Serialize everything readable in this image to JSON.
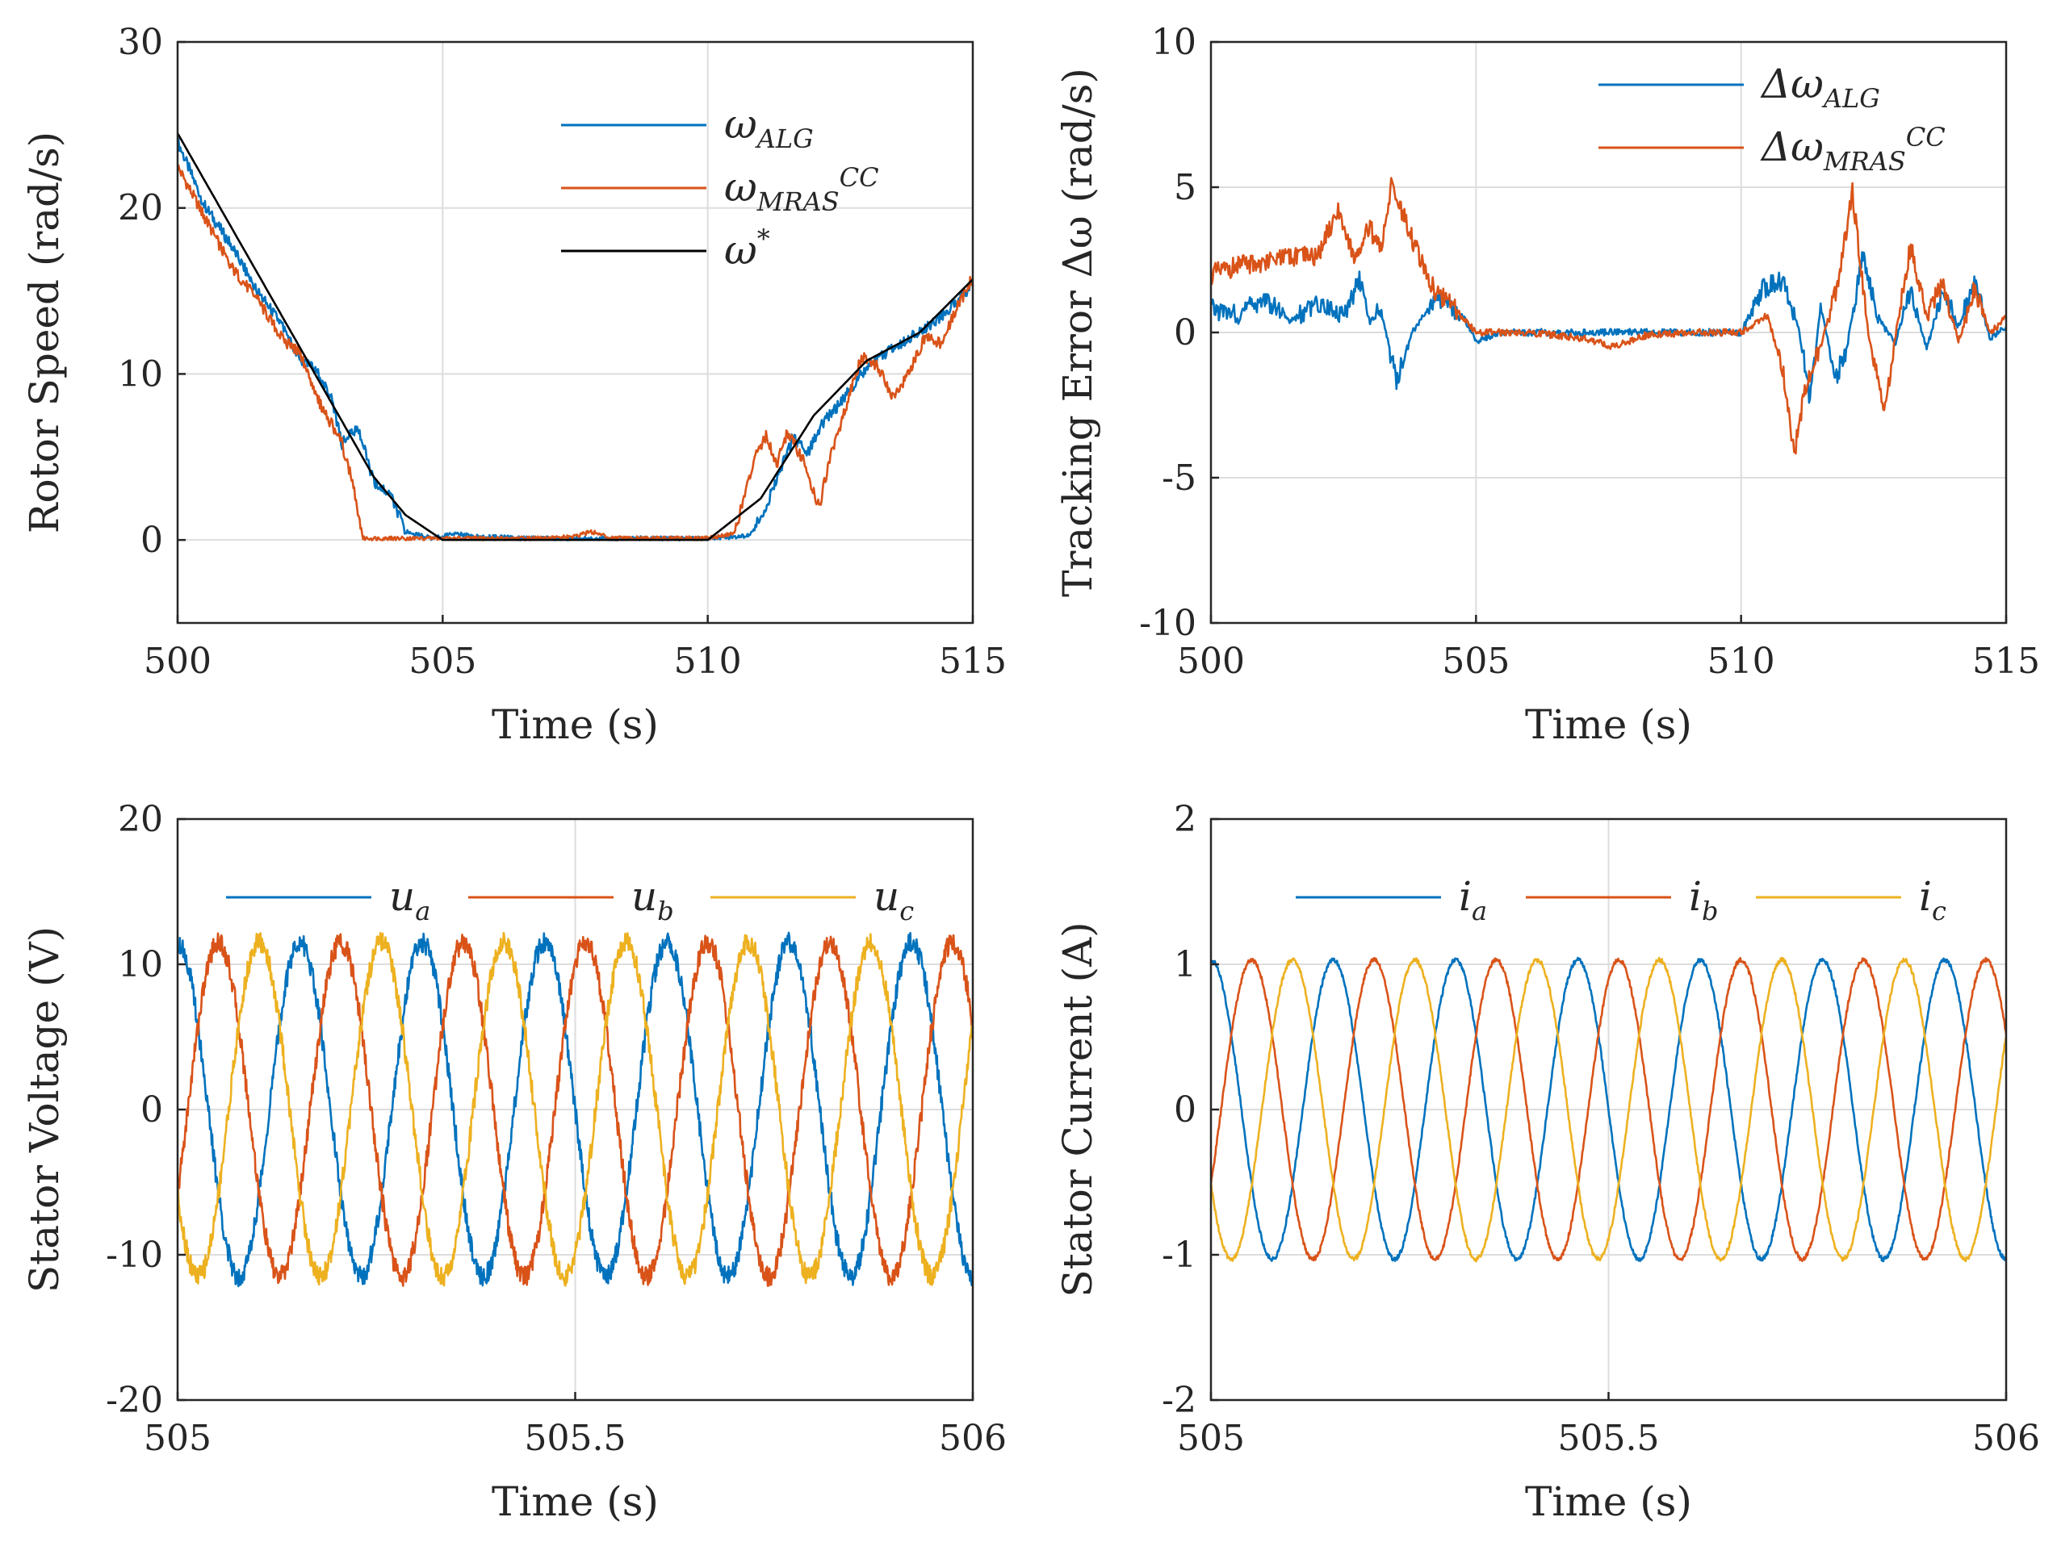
{
  "colors": {
    "blue": "#0072BD",
    "orange": "#D95319",
    "yellow": "#EDB120",
    "black": "#000000"
  },
  "chart_data": [
    {
      "id": "speed",
      "type": "line",
      "xlabel": "Time (s)",
      "ylabel": "Rotor Speed (rad/s)",
      "xlim": [
        500,
        515
      ],
      "ylim": [
        -5,
        30
      ],
      "xticks": [
        500,
        505,
        510,
        515
      ],
      "yticks": [
        0,
        10,
        20,
        30
      ],
      "legend_position": "top-right",
      "series": [
        {
          "name": "ω_ALG",
          "symbol": "ω",
          "subscript": "ALG",
          "superscript": "",
          "color": "blue",
          "points": [
            [
              500,
              24.0
            ],
            [
              500.5,
              20.2
            ],
            [
              501,
              17.8
            ],
            [
              501.5,
              15.0
            ],
            [
              502,
              12.8
            ],
            [
              502.3,
              10.8
            ],
            [
              502.6,
              10.3
            ],
            [
              502.9,
              8.5
            ],
            [
              503.1,
              5.8
            ],
            [
              503.4,
              6.8
            ],
            [
              503.7,
              3.5
            ],
            [
              504,
              2.8
            ],
            [
              504.3,
              0.5
            ],
            [
              504.8,
              0.1
            ],
            [
              505.2,
              0.4
            ],
            [
              505.6,
              0.2
            ],
            [
              506,
              0.2
            ],
            [
              506.5,
              0.1
            ],
            [
              507,
              0.1
            ],
            [
              508,
              0.1
            ],
            [
              509,
              0.1
            ],
            [
              510,
              0.1
            ],
            [
              510.6,
              0.2
            ],
            [
              510.8,
              0.3
            ],
            [
              511,
              1.4
            ],
            [
              511.3,
              3.5
            ],
            [
              511.6,
              6.2
            ],
            [
              511.9,
              5.3
            ],
            [
              512.2,
              7.2
            ],
            [
              512.5,
              8.2
            ],
            [
              512.8,
              9.6
            ],
            [
              513.1,
              10.8
            ],
            [
              513.5,
              11.5
            ],
            [
              513.9,
              12.4
            ],
            [
              514.3,
              13.2
            ],
            [
              514.7,
              14.4
            ],
            [
              515,
              15.4
            ]
          ]
        },
        {
          "name": "ω_MRAS^CC",
          "symbol": "ω",
          "subscript": "MRAS",
          "superscript": "CC",
          "color": "orange",
          "points": [
            [
              500,
              22.5
            ],
            [
              500.5,
              19.5
            ],
            [
              501,
              16.5
            ],
            [
              501.5,
              14.5
            ],
            [
              502,
              12.0
            ],
            [
              502.3,
              11.3
            ],
            [
              502.6,
              8.7
            ],
            [
              502.9,
              7.0
            ],
            [
              503.1,
              5.8
            ],
            [
              503.3,
              3.5
            ],
            [
              503.5,
              0.1
            ],
            [
              504,
              0.1
            ],
            [
              504.5,
              0.1
            ],
            [
              505,
              0.1
            ],
            [
              506,
              0.1
            ],
            [
              507,
              0.1
            ],
            [
              507.5,
              0.2
            ],
            [
              507.8,
              0.5
            ],
            [
              508.2,
              0.1
            ],
            [
              509,
              0.1
            ],
            [
              510,
              0.1
            ],
            [
              510.5,
              0.4
            ],
            [
              510.9,
              5.0
            ],
            [
              511.1,
              6.3
            ],
            [
              511.3,
              4.5
            ],
            [
              511.5,
              6.5
            ],
            [
              511.8,
              4.8
            ],
            [
              512.1,
              2.0
            ],
            [
              512.3,
              4.8
            ],
            [
              512.6,
              8.0
            ],
            [
              512.9,
              11.0
            ],
            [
              513.2,
              10.5
            ],
            [
              513.5,
              8.5
            ],
            [
              513.8,
              10.2
            ],
            [
              514.1,
              12.2
            ],
            [
              514.4,
              11.8
            ],
            [
              514.7,
              14.0
            ],
            [
              515,
              15.8
            ]
          ]
        },
        {
          "name": "ω*",
          "symbol": "ω",
          "subscript": "",
          "superscript": "*",
          "color": "black",
          "points": [
            [
              500,
              24.5
            ],
            [
              503.7,
              3.8
            ],
            [
              504.3,
              1.5
            ],
            [
              505,
              0
            ],
            [
              510,
              0
            ],
            [
              511,
              2.5
            ],
            [
              512,
              7.5
            ],
            [
              513,
              10.8
            ],
            [
              514,
              12.5
            ],
            [
              515,
              15.7
            ]
          ]
        }
      ]
    },
    {
      "id": "error",
      "type": "line",
      "xlabel": "Time (s)",
      "ylabel": "Tracking Error Δω (rad/s)",
      "xlim": [
        500,
        515
      ],
      "ylim": [
        -10,
        10
      ],
      "xticks": [
        500,
        505,
        510,
        515
      ],
      "yticks": [
        -10,
        -5,
        0,
        5,
        10
      ],
      "legend_position": "top-right",
      "series": [
        {
          "name": "Δω_ALG",
          "symbol": "Δω",
          "subscript": "ALG",
          "superscript": "",
          "color": "blue",
          "points": [
            [
              500,
              0.8
            ],
            [
              500.5,
              0.6
            ],
            [
              501,
              1.2
            ],
            [
              501.5,
              0.4
            ],
            [
              502,
              1.0
            ],
            [
              502.5,
              0.6
            ],
            [
              502.8,
              1.8
            ],
            [
              503,
              0.3
            ],
            [
              503.2,
              0.8
            ],
            [
              503.5,
              -1.7
            ],
            [
              503.8,
              0.0
            ],
            [
              504.1,
              0.8
            ],
            [
              504.4,
              1.2
            ],
            [
              504.8,
              0.4
            ],
            [
              505,
              -0.3
            ],
            [
              505.5,
              0.0
            ],
            [
              506,
              0.0
            ],
            [
              507,
              0.0
            ],
            [
              508,
              0.0
            ],
            [
              509,
              0.0
            ],
            [
              510,
              0.0
            ],
            [
              510.4,
              1.5
            ],
            [
              510.8,
              1.8
            ],
            [
              511.1,
              0.0
            ],
            [
              511.3,
              -2.3
            ],
            [
              511.5,
              0.8
            ],
            [
              511.8,
              -1.5
            ],
            [
              512.0,
              -0.5
            ],
            [
              512.3,
              2.7
            ],
            [
              512.6,
              0.5
            ],
            [
              512.9,
              -0.4
            ],
            [
              513.2,
              1.5
            ],
            [
              513.5,
              -0.6
            ],
            [
              513.8,
              1.5
            ],
            [
              514.1,
              0.2
            ],
            [
              514.4,
              1.8
            ],
            [
              514.7,
              -0.2
            ],
            [
              515,
              0.2
            ]
          ]
        },
        {
          "name": "Δω_MRAS^CC",
          "symbol": "Δω",
          "subscript": "MRAS",
          "superscript": "CC",
          "color": "orange",
          "points": [
            [
              500,
              2.0
            ],
            [
              500.5,
              2.3
            ],
            [
              501,
              2.4
            ],
            [
              501.5,
              2.6
            ],
            [
              502,
              2.6
            ],
            [
              502.4,
              4.3
            ],
            [
              502.7,
              2.6
            ],
            [
              503,
              3.6
            ],
            [
              503.2,
              2.8
            ],
            [
              503.4,
              5.1
            ],
            [
              503.8,
              3.2
            ],
            [
              504.2,
              1.5
            ],
            [
              504.6,
              0.8
            ],
            [
              505,
              0.0
            ],
            [
              506,
              0.0
            ],
            [
              507,
              -0.2
            ],
            [
              507.6,
              -0.5
            ],
            [
              508.2,
              -0.1
            ],
            [
              509,
              0.0
            ],
            [
              510,
              0.0
            ],
            [
              510.5,
              0.6
            ],
            [
              510.8,
              -1.5
            ],
            [
              511.0,
              -4.2
            ],
            [
              511.2,
              -2.0
            ],
            [
              511.5,
              -0.5
            ],
            [
              511.8,
              1.5
            ],
            [
              512.1,
              4.8
            ],
            [
              512.4,
              0.0
            ],
            [
              512.7,
              -2.8
            ],
            [
              513.0,
              1.0
            ],
            [
              513.2,
              3.0
            ],
            [
              513.5,
              0.5
            ],
            [
              513.8,
              1.8
            ],
            [
              514.1,
              -0.3
            ],
            [
              514.4,
              1.5
            ],
            [
              514.7,
              0.0
            ],
            [
              515,
              0.5
            ]
          ]
        }
      ]
    },
    {
      "id": "voltage",
      "type": "line",
      "xlabel": "Time (s)",
      "ylabel": "Stator Voltage (V)",
      "xlim": [
        505,
        506
      ],
      "ylim": [
        -20,
        20
      ],
      "xticks": [
        505,
        505.5,
        506
      ],
      "xtick_labels": [
        "505",
        "505.5",
        "506"
      ],
      "yticks": [
        -20,
        -10,
        0,
        10,
        20
      ],
      "legend_position": "top",
      "waveform": {
        "frequency_hz": 6.5,
        "amplitude": 11.5,
        "phase_deg_a": 90,
        "noise": 0.7
      },
      "series": [
        {
          "name": "u_a",
          "symbol": "u",
          "subscript": "a",
          "color": "blue"
        },
        {
          "name": "u_b",
          "symbol": "u",
          "subscript": "b",
          "color": "orange"
        },
        {
          "name": "u_c",
          "symbol": "u",
          "subscript": "c",
          "color": "yellow"
        }
      ]
    },
    {
      "id": "current",
      "type": "line",
      "xlabel": "Time (s)",
      "ylabel": "Stator Current (A)",
      "xlim": [
        505,
        506
      ],
      "ylim": [
        -2,
        2
      ],
      "xticks": [
        505,
        505.5,
        506
      ],
      "xtick_labels": [
        "505",
        "505.5",
        "506"
      ],
      "yticks": [
        -2,
        -1,
        0,
        1,
        2
      ],
      "legend_position": "top",
      "waveform": {
        "frequency_hz": 6.5,
        "amplitude": 1.03,
        "phase_deg_a": 90,
        "noise": 0.015
      },
      "series": [
        {
          "name": "i_a",
          "symbol": "i",
          "subscript": "a",
          "color": "blue"
        },
        {
          "name": "i_b",
          "symbol": "i",
          "subscript": "b",
          "color": "orange"
        },
        {
          "name": "i_c",
          "symbol": "i",
          "subscript": "c",
          "color": "yellow"
        }
      ]
    }
  ]
}
